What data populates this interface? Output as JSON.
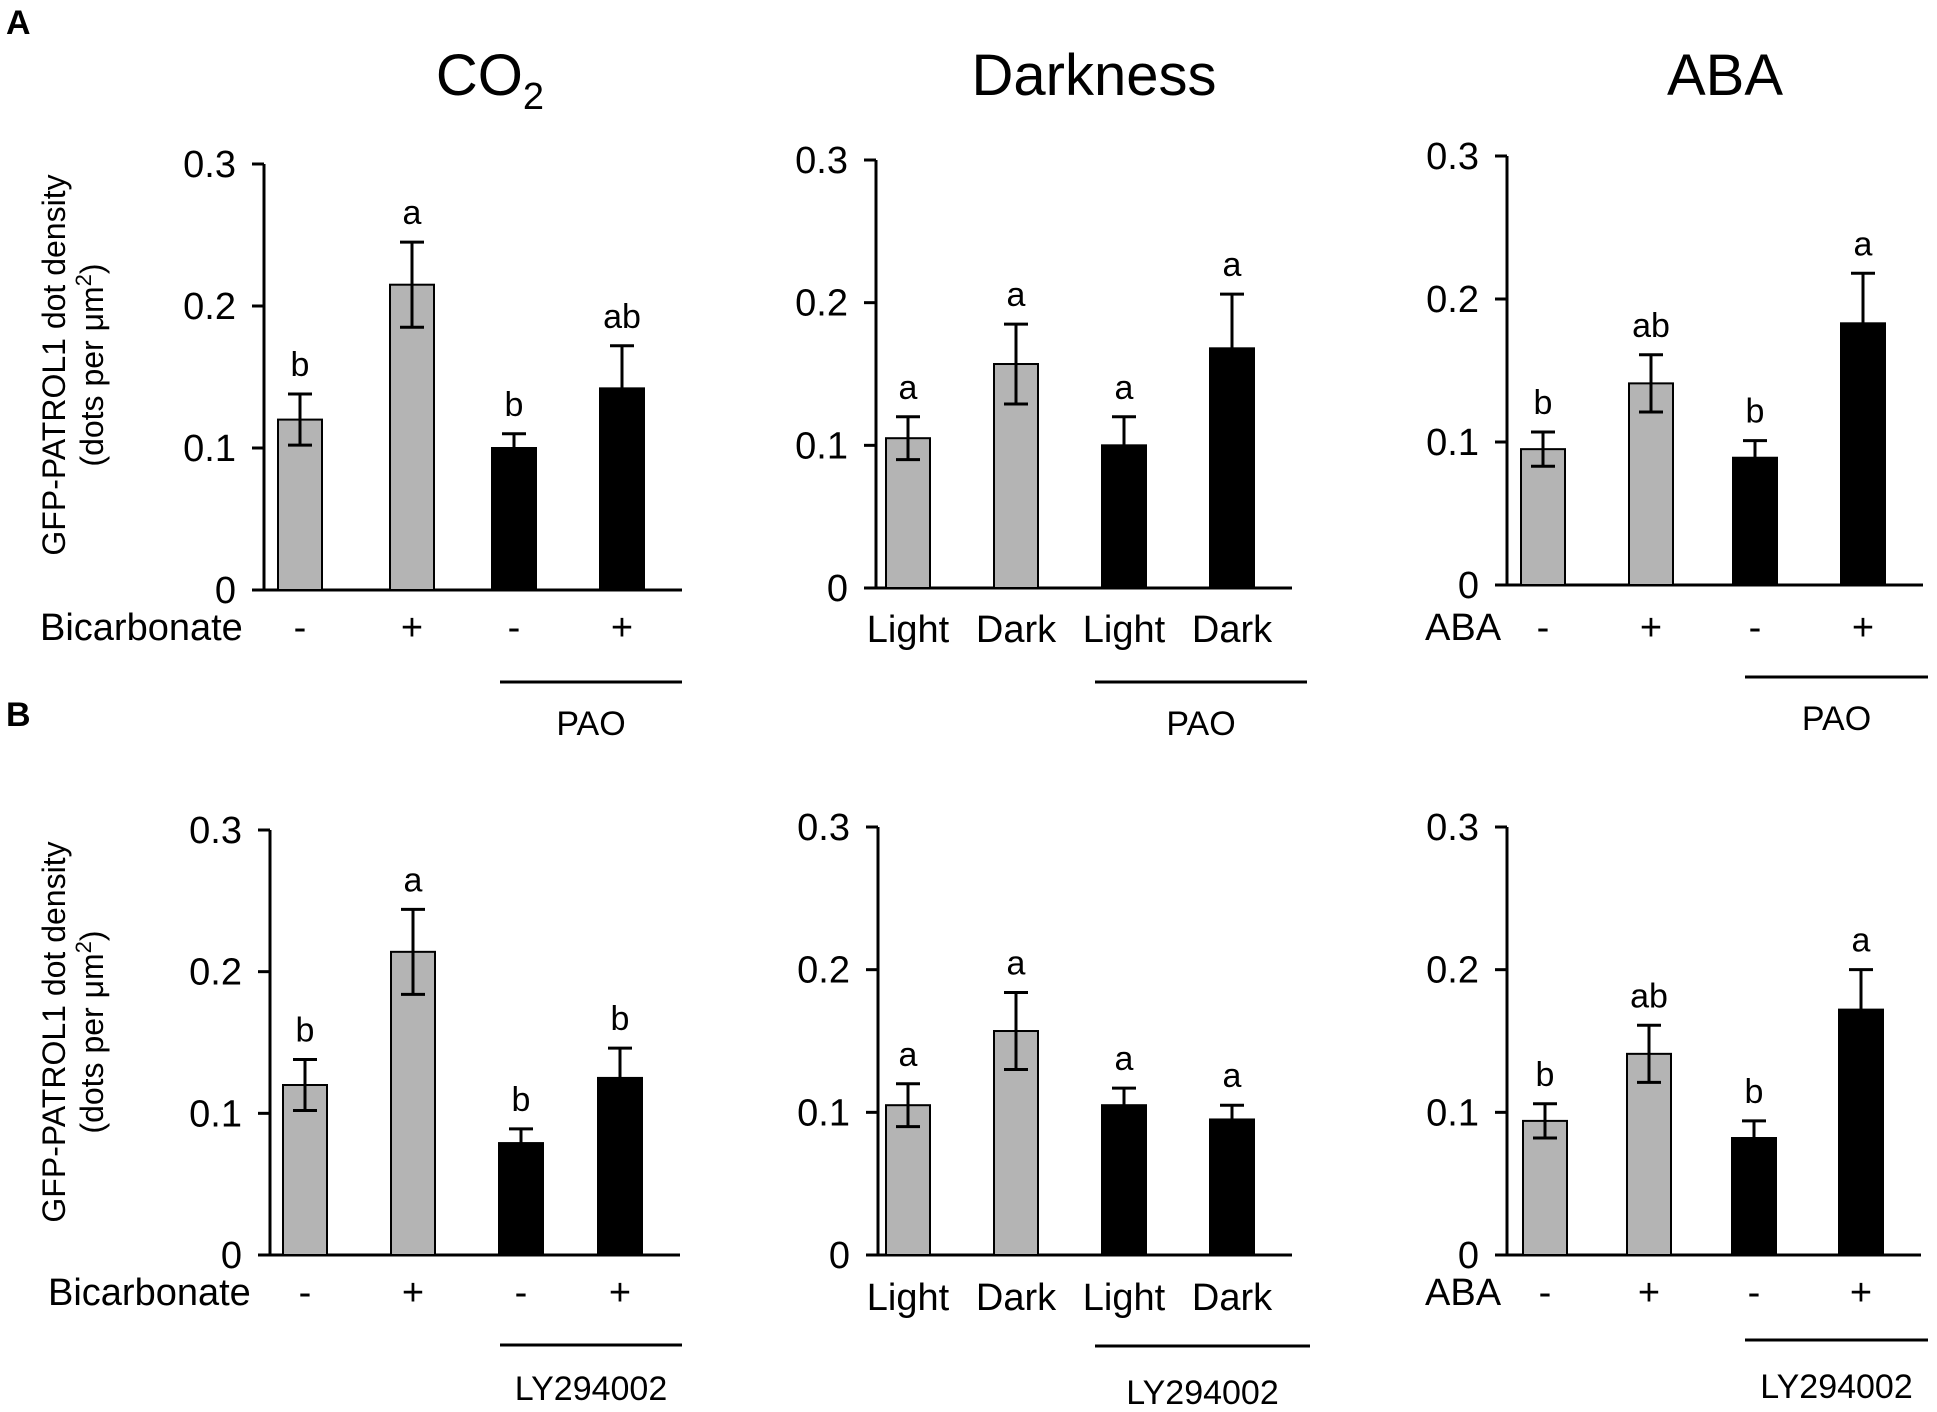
{
  "panel_labels": [
    "A",
    "B"
  ],
  "column_titles": [
    {
      "main": "CO",
      "sub": "2"
    },
    {
      "main": "Darkness",
      "sub": ""
    },
    {
      "main": "ABA",
      "sub": ""
    }
  ],
  "y_axis_label": {
    "line1": "GFP-PATROL1 dot density",
    "line2_prefix": "(dots per μm",
    "line2_sup": "2",
    "line2_suffix": ")"
  },
  "colors": {
    "control_bar": "#b4b4b4",
    "inhibitor_bar": "#000000",
    "bar_edge": "#000000"
  },
  "chart_data": [
    {
      "id": "A-CO2",
      "row": "A",
      "type": "bar",
      "title": "CO2",
      "ylim": [
        0,
        0.3
      ],
      "yticks": [
        "0",
        "0.1",
        "0.2",
        "0.3"
      ],
      "treatment_label": "Bicarbonate",
      "categories": [
        "-",
        "+",
        "-",
        "+"
      ],
      "values": [
        0.12,
        0.215,
        0.1,
        0.142
      ],
      "errors": [
        0.018,
        0.03,
        0.01,
        0.03
      ],
      "significance": [
        "b",
        "a",
        "b",
        "ab"
      ],
      "bar_colors": [
        "control",
        "control",
        "inhibitor",
        "inhibitor"
      ],
      "inhibitor_label": "PAO"
    },
    {
      "id": "A-Darkness",
      "row": "A",
      "type": "bar",
      "title": "Darkness",
      "ylim": [
        0,
        0.3
      ],
      "yticks": [
        "0",
        "0.1",
        "0.2",
        "0.3"
      ],
      "treatment_label": "",
      "categories": [
        "Light",
        "Dark",
        "Light",
        "Dark"
      ],
      "values": [
        0.105,
        0.157,
        0.1,
        0.168
      ],
      "errors": [
        0.015,
        0.028,
        0.02,
        0.038
      ],
      "significance": [
        "a",
        "a",
        "a",
        "a"
      ],
      "bar_colors": [
        "control",
        "control",
        "inhibitor",
        "inhibitor"
      ],
      "inhibitor_label": "PAO"
    },
    {
      "id": "A-ABA",
      "row": "A",
      "type": "bar",
      "title": "ABA",
      "ylim": [
        0,
        0.3
      ],
      "yticks": [
        "0",
        "0.1",
        "0.2",
        "0.3"
      ],
      "treatment_label": "ABA",
      "categories": [
        "-",
        "+",
        "-",
        "+"
      ],
      "values": [
        0.095,
        0.141,
        0.089,
        0.183
      ],
      "errors": [
        0.012,
        0.02,
        0.012,
        0.035
      ],
      "significance": [
        "b",
        "ab",
        "b",
        "a"
      ],
      "bar_colors": [
        "control",
        "control",
        "inhibitor",
        "inhibitor"
      ],
      "inhibitor_label": "PAO"
    },
    {
      "id": "B-CO2",
      "row": "B",
      "type": "bar",
      "title": "CO2",
      "ylim": [
        0,
        0.3
      ],
      "yticks": [
        "0",
        "0.1",
        "0.2",
        "0.3"
      ],
      "treatment_label": "Bicarbonate",
      "categories": [
        "-",
        "+",
        "-",
        "+"
      ],
      "values": [
        0.12,
        0.214,
        0.079,
        0.125
      ],
      "errors": [
        0.018,
        0.03,
        0.01,
        0.021
      ],
      "significance": [
        "b",
        "a",
        "b",
        "b"
      ],
      "bar_colors": [
        "control",
        "control",
        "inhibitor",
        "inhibitor"
      ],
      "inhibitor_label": "LY294002"
    },
    {
      "id": "B-Darkness",
      "row": "B",
      "type": "bar",
      "title": "Darkness",
      "ylim": [
        0,
        0.3
      ],
      "yticks": [
        "0",
        "0.1",
        "0.2",
        "0.3"
      ],
      "treatment_label": "",
      "categories": [
        "Light",
        "Dark",
        "Light",
        "Dark"
      ],
      "values": [
        0.105,
        0.157,
        0.105,
        0.095
      ],
      "errors": [
        0.015,
        0.027,
        0.012,
        0.01
      ],
      "significance": [
        "a",
        "a",
        "a",
        "a"
      ],
      "bar_colors": [
        "control",
        "control",
        "inhibitor",
        "inhibitor"
      ],
      "inhibitor_label": "LY294002"
    },
    {
      "id": "B-ABA",
      "row": "B",
      "type": "bar",
      "title": "ABA",
      "ylim": [
        0,
        0.3
      ],
      "yticks": [
        "0",
        "0.1",
        "0.2",
        "0.3"
      ],
      "treatment_label": "ABA",
      "categories": [
        "-",
        "+",
        "-",
        "+"
      ],
      "values": [
        0.094,
        0.141,
        0.082,
        0.172
      ],
      "errors": [
        0.012,
        0.02,
        0.012,
        0.028
      ],
      "significance": [
        "b",
        "ab",
        "b",
        "a"
      ],
      "bar_colors": [
        "control",
        "control",
        "inhibitor",
        "inhibitor"
      ],
      "inhibitor_label": "LY294002"
    }
  ]
}
